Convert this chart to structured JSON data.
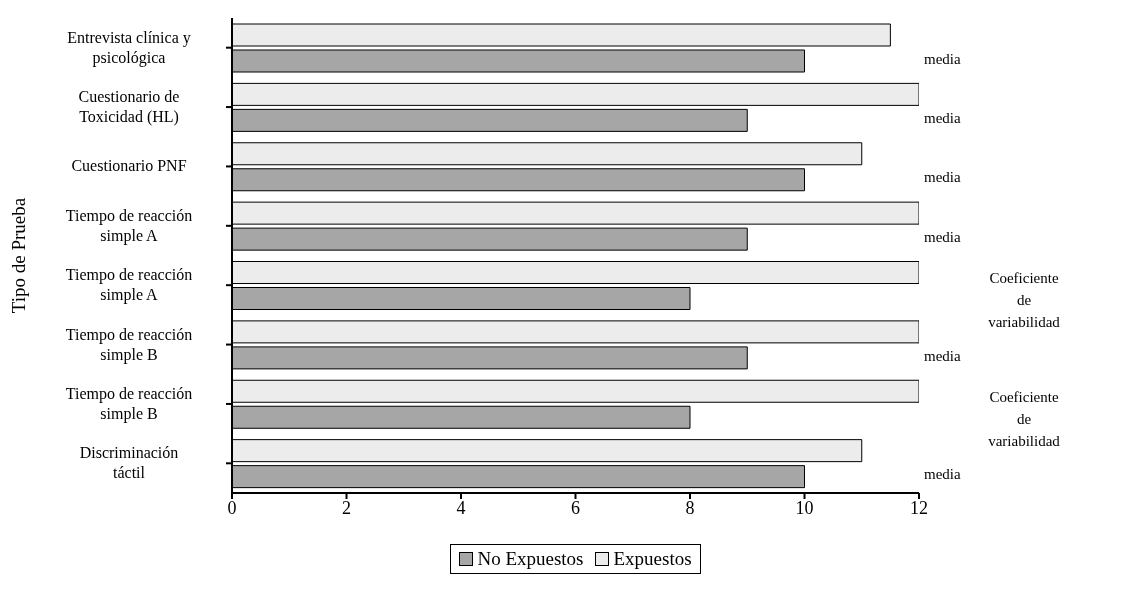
{
  "chart_data": {
    "type": "bar",
    "orientation": "horizontal",
    "ylabel": "Tipo de Prueba",
    "categories": [
      "Entrevista clínica y psicológica",
      "Cuestionario de Toxicidad (HL)",
      "Cuestionario PNF",
      "Tiempo de reacción simple A",
      "Tiempo de reacción simple A",
      "Tiempo de reacción simple B",
      "Tiempo de reacción simple B",
      "Discriminación táctil"
    ],
    "series": [
      {
        "name": "No Expuestos",
        "color": "#a6a6a6",
        "values": [
          10,
          9,
          10,
          9,
          8,
          9,
          8,
          10
        ]
      },
      {
        "name": "Expuestos",
        "color": "#ececec",
        "values": [
          11.5,
          12,
          11,
          12,
          12,
          12,
          12,
          11
        ]
      }
    ],
    "xlim": [
      0,
      12
    ],
    "xticks": [
      0,
      2,
      4,
      6,
      8,
      10,
      12
    ],
    "grid": false,
    "legend": "bottom",
    "annotations": [
      "media",
      "media",
      "media",
      "media",
      "Coeficiente de variabilidad",
      "media",
      "Coeficiente de variabilidad",
      "media"
    ]
  }
}
